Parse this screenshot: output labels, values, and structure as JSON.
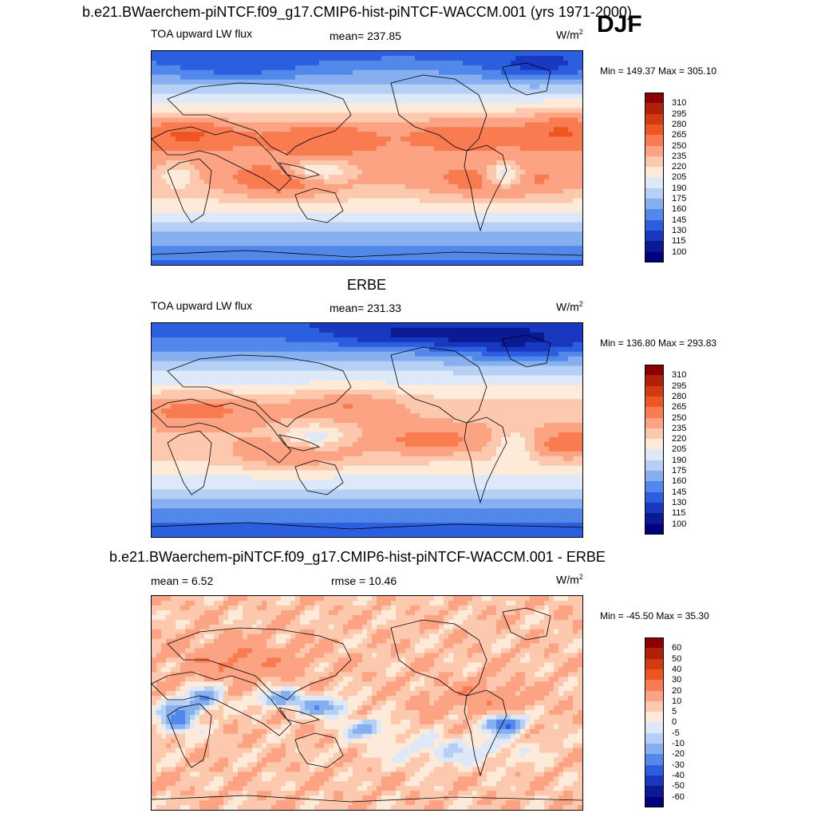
{
  "header": {
    "title": "b.e21.BWaerchem-piNTCF.f09_g17.CMIP6-hist-piNTCF-WACCM.001 (yrs 1971-2000)",
    "season": "DJF"
  },
  "panels": [
    {
      "id": "model",
      "left_label": "TOA upward LW flux",
      "center_label": "mean= 237.85",
      "units": "W/m",
      "units_sup": "2",
      "minmax": "Min = 149.37 Max = 305.10"
    },
    {
      "id": "obs",
      "heading": "ERBE",
      "left_label": "TOA upward LW flux",
      "center_label": "mean= 231.33",
      "units": "W/m",
      "units_sup": "2",
      "minmax": "Min = 136.80 Max = 293.83"
    },
    {
      "id": "diff",
      "heading": "b.e21.BWaerchem-piNTCF.f09_g17.CMIP6-hist-piNTCF-WACCM.001 - ERBE",
      "left_label": "mean =   6.52",
      "center_label": "rmse =  10.46",
      "units": "W/m",
      "units_sup": "2",
      "minmax": "Min = -45.50 Max =  35.30"
    }
  ],
  "chart_data": [
    {
      "type": "heatmap",
      "title": "TOA upward LW flux",
      "units": "W/m2",
      "mean": 237.85,
      "min": 149.37,
      "max": 305.1,
      "colorbar_levels": [
        310,
        295,
        280,
        265,
        250,
        235,
        220,
        205,
        190,
        175,
        160,
        145,
        130,
        115,
        100
      ],
      "colorbar_colors": [
        "#8b0000",
        "#b02008",
        "#d33a0e",
        "#ee5522",
        "#f97b50",
        "#fca383",
        "#fdc9ae",
        "#feead8",
        "#dde9f8",
        "#b6d0f5",
        "#86aff0",
        "#5288ea",
        "#2c5fe0",
        "#1838c0",
        "#0a1a94",
        "#00007a"
      ]
    },
    {
      "type": "heatmap",
      "title": "ERBE TOA upward LW flux",
      "units": "W/m2",
      "mean": 231.33,
      "min": 136.8,
      "max": 293.83,
      "colorbar_levels": [
        310,
        295,
        280,
        265,
        250,
        235,
        220,
        205,
        190,
        175,
        160,
        145,
        130,
        115,
        100
      ],
      "colorbar_colors": [
        "#8b0000",
        "#b02008",
        "#d33a0e",
        "#ee5522",
        "#f97b50",
        "#fca383",
        "#fdc9ae",
        "#feead8",
        "#dde9f8",
        "#b6d0f5",
        "#86aff0",
        "#5288ea",
        "#2c5fe0",
        "#1838c0",
        "#0a1a94",
        "#00007a"
      ]
    },
    {
      "type": "heatmap",
      "title": "b.e21.BWaerchem-piNTCF.f09_g17.CMIP6-hist-piNTCF-WACCM.001 - ERBE",
      "units": "W/m2",
      "mean": 6.52,
      "rmse": 10.46,
      "min": -45.5,
      "max": 35.3,
      "colorbar_levels": [
        60,
        50,
        40,
        30,
        20,
        10,
        5,
        0,
        -5,
        -10,
        -20,
        -30,
        -40,
        -50,
        -60
      ],
      "colorbar_colors": [
        "#8b0000",
        "#b02008",
        "#d33a0e",
        "#ee5522",
        "#f97b50",
        "#fca383",
        "#fdc9ae",
        "#feead8",
        "#dde9f8",
        "#b6d0f5",
        "#86aff0",
        "#5288ea",
        "#2c5fe0",
        "#1838c0",
        "#0a1a94",
        "#00007a"
      ]
    }
  ]
}
